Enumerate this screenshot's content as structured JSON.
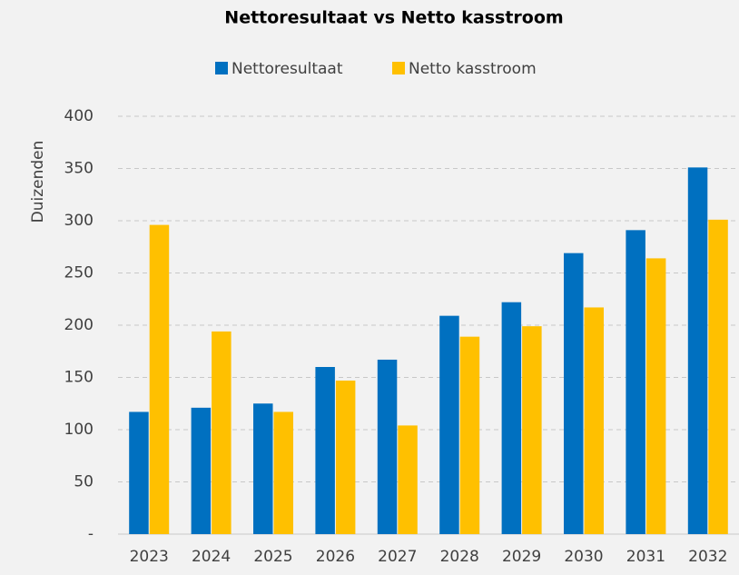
{
  "chart_data": {
    "type": "bar",
    "title": "Nettoresultaat vs Netto kasstroom",
    "y_label": "Duizenden",
    "categories": [
      "2023",
      "2024",
      "2025",
      "2026",
      "2027",
      "2028",
      "2029",
      "2030",
      "2031",
      "2032"
    ],
    "series": [
      {
        "name": "Nettoresultaat",
        "color": "#0070c0",
        "values": [
          117,
          121,
          125,
          160,
          167,
          209,
          222,
          269,
          291,
          351
        ]
      },
      {
        "name": "Netto kasstroom",
        "color": "#ffc000",
        "values": [
          296,
          194,
          117,
          147,
          104,
          189,
          199,
          217,
          264,
          301
        ]
      }
    ],
    "ylim": [
      0,
      400
    ],
    "yticks": [
      {
        "value": 0,
        "label": "-"
      },
      50,
      100,
      150,
      200,
      250,
      300,
      350,
      400
    ],
    "grid": true,
    "legend": "top"
  }
}
